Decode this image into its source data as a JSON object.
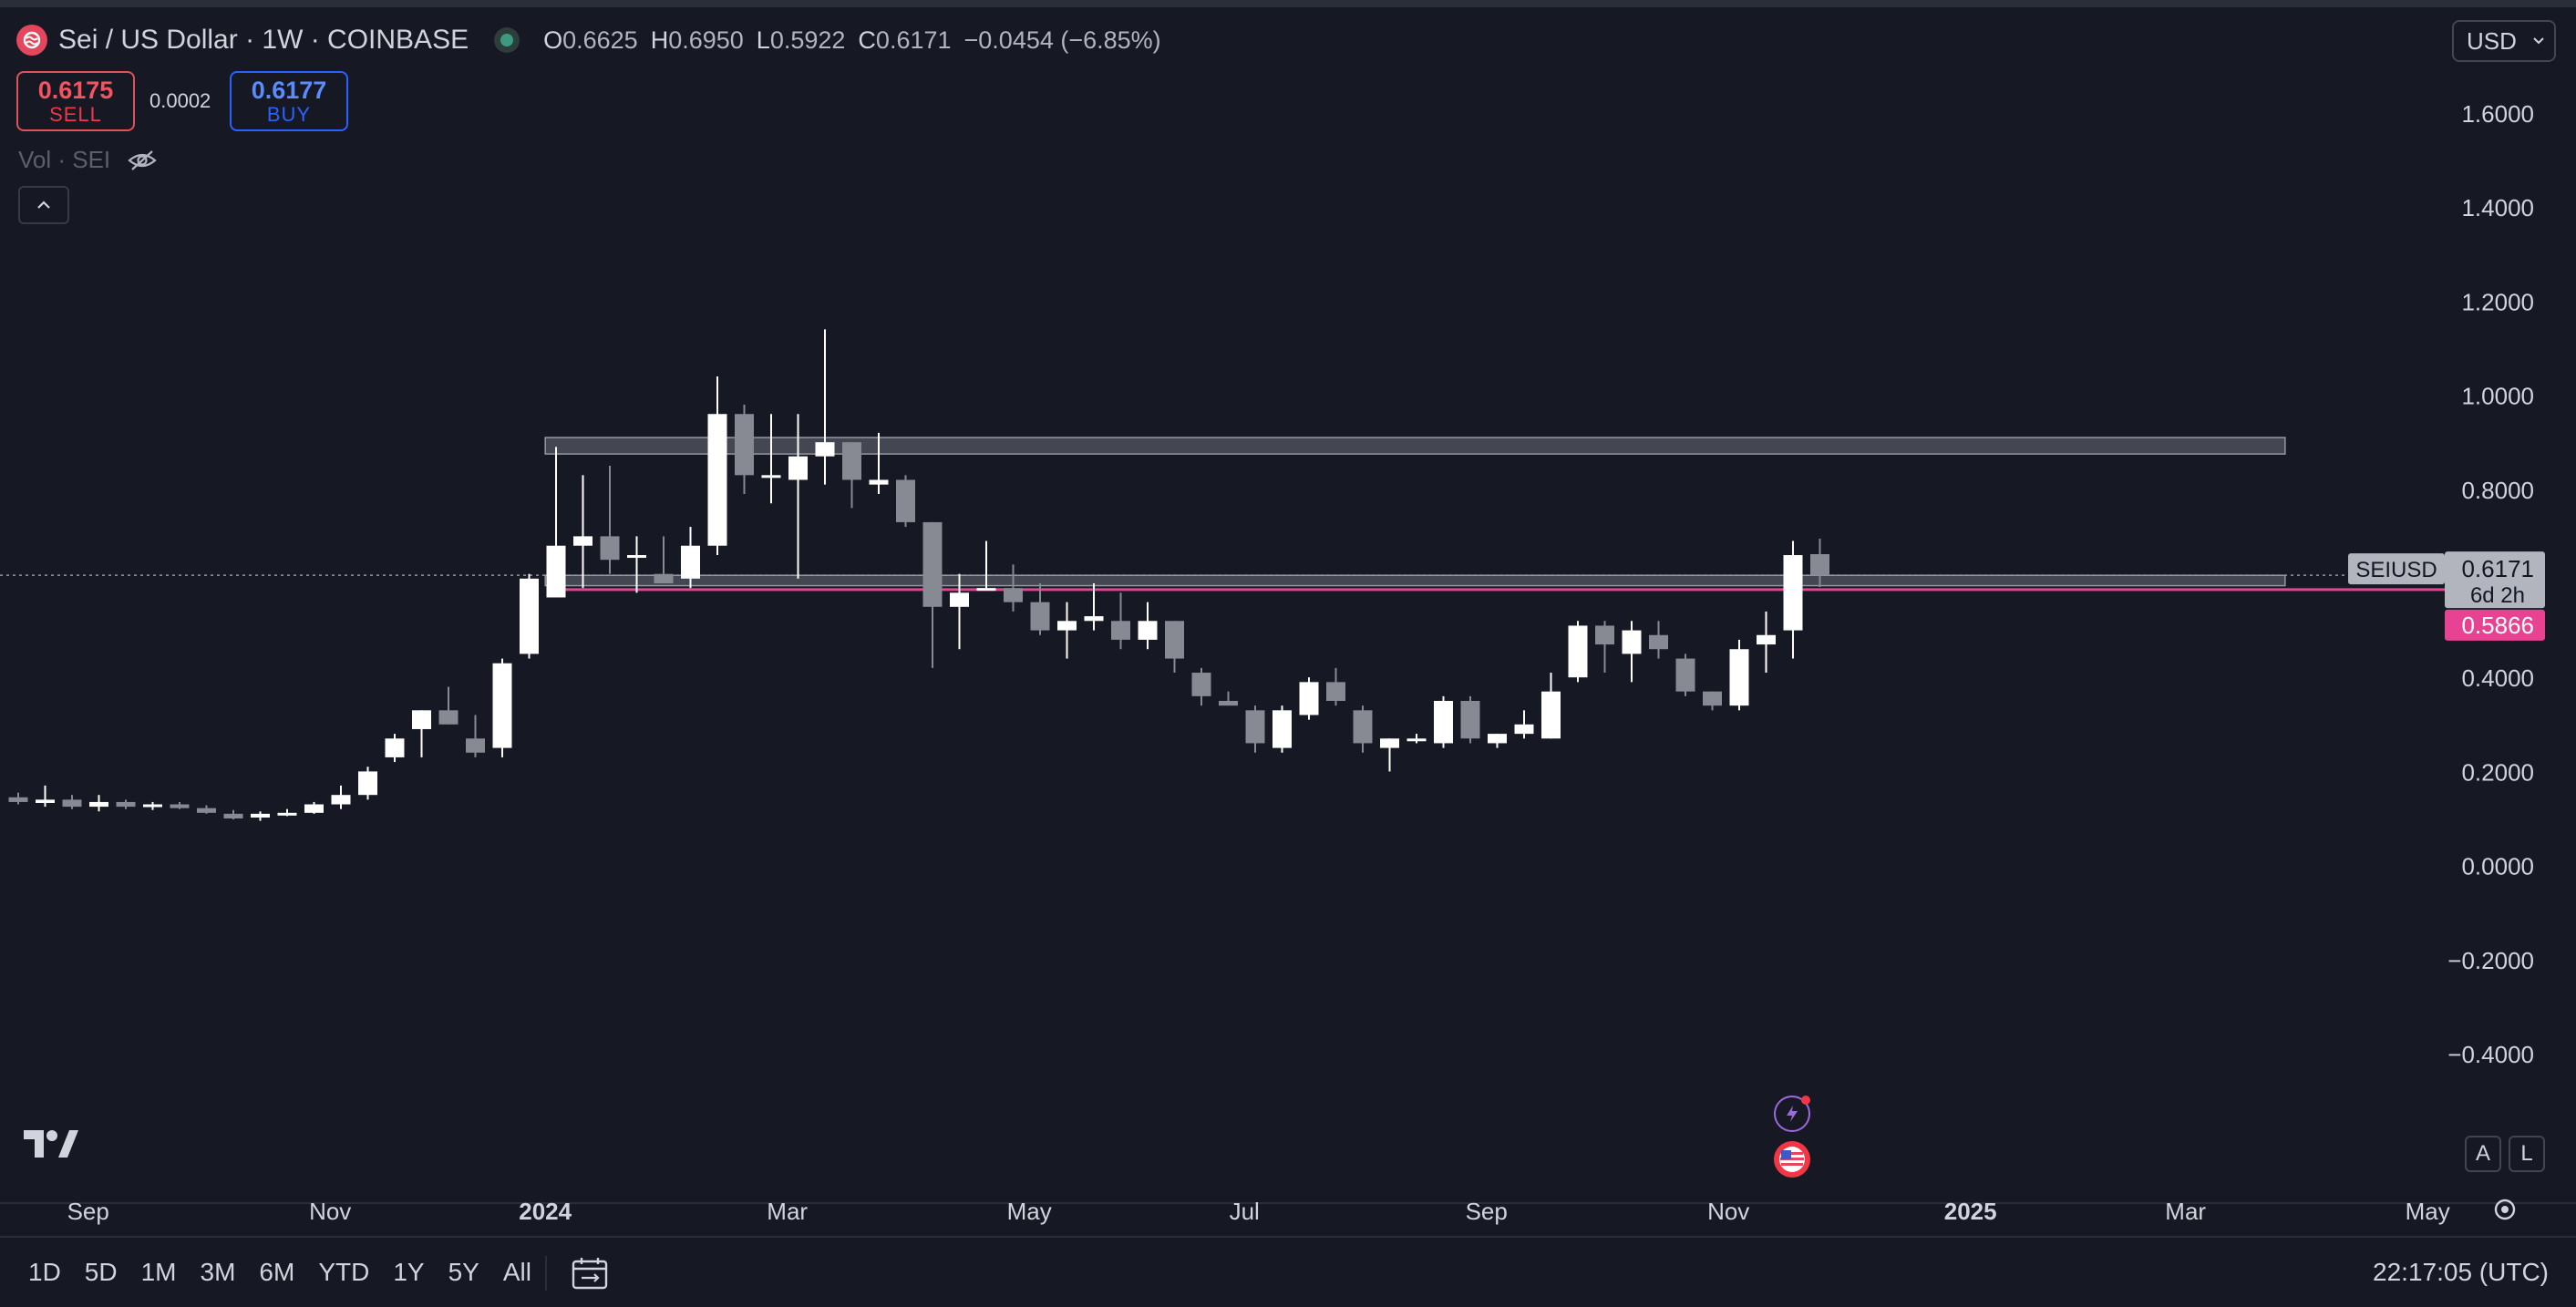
{
  "header": {
    "title": "Sei / US Dollar · 1W · COINBASE",
    "ohlc": [
      {
        "key": "O",
        "value": "0.6625"
      },
      {
        "key": "H",
        "value": "0.6950"
      },
      {
        "key": "L",
        "value": "0.5922"
      },
      {
        "key": "C",
        "value": "0.6171"
      }
    ],
    "change": "−0.0454 (−6.85%)",
    "currency": "USD"
  },
  "trade": {
    "sell_price": "0.6175",
    "sell_label": "SELL",
    "spread": "0.0002",
    "buy_price": "0.6177",
    "buy_label": "BUY"
  },
  "volume": {
    "label": "Vol · SEI"
  },
  "colors": {
    "background": "#161823",
    "up": "#ffffff",
    "down": "#878993",
    "level": "#e84393",
    "zone": "#6b6e78"
  },
  "chart_data": {
    "type": "candlestick",
    "symbol": "SEIUSD",
    "interval": "1W",
    "y_ticks": [
      "1.6000",
      "1.4000",
      "1.2000",
      "1.0000",
      "0.8000",
      "0.6000",
      "0.4000",
      "0.2000",
      "0.0000",
      "−0.2000",
      "−0.4000"
    ],
    "ylim": [
      -0.43,
      1.72
    ],
    "x_ticks": [
      {
        "label": "Sep",
        "x": 2.6
      },
      {
        "label": "Nov",
        "x": 11.6
      },
      {
        "label": "2024",
        "x": 19.6
      },
      {
        "label": "Mar",
        "x": 28.6
      },
      {
        "label": "May",
        "x": 37.6
      },
      {
        "label": "Jul",
        "x": 45.6
      },
      {
        "label": "Sep",
        "x": 54.6
      },
      {
        "label": "Nov",
        "x": 63.6
      },
      {
        "label": "2025",
        "x": 72.6
      },
      {
        "label": "Mar",
        "x": 80.6
      },
      {
        "label": "May",
        "x": 89.6
      }
    ],
    "x_range": [
      0,
      95.6
    ],
    "candles": [
      [
        0.145,
        0.155,
        0.13,
        0.135
      ],
      [
        0.133,
        0.17,
        0.125,
        0.14
      ],
      [
        0.14,
        0.15,
        0.12,
        0.125
      ],
      [
        0.125,
        0.15,
        0.115,
        0.135
      ],
      [
        0.135,
        0.14,
        0.12,
        0.125
      ],
      [
        0.125,
        0.135,
        0.118,
        0.13
      ],
      [
        0.13,
        0.135,
        0.12,
        0.122
      ],
      [
        0.122,
        0.128,
        0.11,
        0.112
      ],
      [
        0.11,
        0.118,
        0.098,
        0.1
      ],
      [
        0.102,
        0.115,
        0.095,
        0.11
      ],
      [
        0.112,
        0.12,
        0.105,
        0.112
      ],
      [
        0.112,
        0.135,
        0.11,
        0.13
      ],
      [
        0.13,
        0.17,
        0.12,
        0.15
      ],
      [
        0.15,
        0.21,
        0.14,
        0.2
      ],
      [
        0.23,
        0.28,
        0.22,
        0.27
      ],
      [
        0.29,
        0.33,
        0.23,
        0.33
      ],
      [
        0.33,
        0.38,
        0.3,
        0.3
      ],
      [
        0.27,
        0.32,
        0.23,
        0.24
      ],
      [
        0.25,
        0.44,
        0.23,
        0.43
      ],
      [
        0.45,
        0.62,
        0.44,
        0.61
      ],
      [
        0.57,
        0.89,
        0.57,
        0.68
      ],
      [
        0.68,
        0.83,
        0.59,
        0.7
      ],
      [
        0.7,
        0.85,
        0.62,
        0.65
      ],
      [
        0.66,
        0.7,
        0.58,
        0.66
      ],
      [
        0.62,
        0.7,
        0.62,
        0.6
      ],
      [
        0.61,
        0.72,
        0.59,
        0.68
      ],
      [
        0.68,
        1.04,
        0.66,
        0.96
      ],
      [
        0.96,
        0.98,
        0.79,
        0.83
      ],
      [
        0.83,
        0.96,
        0.77,
        0.83
      ],
      [
        0.82,
        0.96,
        0.61,
        0.87
      ],
      [
        0.87,
        1.14,
        0.81,
        0.9
      ],
      [
        0.9,
        0.9,
        0.76,
        0.82
      ],
      [
        0.81,
        0.92,
        0.79,
        0.82
      ],
      [
        0.82,
        0.83,
        0.72,
        0.73
      ],
      [
        0.73,
        0.73,
        0.42,
        0.55
      ],
      [
        0.55,
        0.62,
        0.46,
        0.58
      ],
      [
        0.59,
        0.69,
        0.59,
        0.59
      ],
      [
        0.59,
        0.64,
        0.54,
        0.56
      ],
      [
        0.56,
        0.6,
        0.49,
        0.5
      ],
      [
        0.5,
        0.56,
        0.44,
        0.52
      ],
      [
        0.52,
        0.6,
        0.5,
        0.53
      ],
      [
        0.52,
        0.58,
        0.46,
        0.48
      ],
      [
        0.48,
        0.56,
        0.46,
        0.52
      ],
      [
        0.52,
        0.52,
        0.41,
        0.44
      ],
      [
        0.41,
        0.42,
        0.34,
        0.36
      ],
      [
        0.35,
        0.37,
        0.34,
        0.34
      ],
      [
        0.33,
        0.34,
        0.24,
        0.26
      ],
      [
        0.25,
        0.34,
        0.24,
        0.33
      ],
      [
        0.32,
        0.4,
        0.31,
        0.39
      ],
      [
        0.39,
        0.42,
        0.34,
        0.35
      ],
      [
        0.33,
        0.34,
        0.24,
        0.26
      ],
      [
        0.25,
        0.27,
        0.2,
        0.27
      ],
      [
        0.27,
        0.28,
        0.26,
        0.27
      ],
      [
        0.26,
        0.36,
        0.25,
        0.35
      ],
      [
        0.35,
        0.36,
        0.26,
        0.27
      ],
      [
        0.26,
        0.28,
        0.25,
        0.28
      ],
      [
        0.28,
        0.33,
        0.27,
        0.3
      ],
      [
        0.27,
        0.41,
        0.27,
        0.37
      ],
      [
        0.4,
        0.52,
        0.39,
        0.51
      ],
      [
        0.51,
        0.52,
        0.41,
        0.47
      ],
      [
        0.45,
        0.52,
        0.39,
        0.5
      ],
      [
        0.49,
        0.52,
        0.44,
        0.46
      ],
      [
        0.44,
        0.45,
        0.36,
        0.37
      ],
      [
        0.37,
        0.37,
        0.33,
        0.34
      ],
      [
        0.34,
        0.48,
        0.33,
        0.46
      ],
      [
        0.47,
        0.54,
        0.41,
        0.49
      ],
      [
        0.5,
        0.69,
        0.44,
        0.66
      ],
      [
        0.662,
        0.695,
        0.592,
        0.617
      ]
    ],
    "zones": [
      {
        "from_x": 19.6,
        "to_x": 84.3,
        "y_low": 0.875,
        "y_high": 0.91
      },
      {
        "from_x": 19.6,
        "to_x": 84.3,
        "y_low": 0.595,
        "y_high": 0.617
      }
    ],
    "level_line": {
      "value": 0.5866,
      "label": "0.5866",
      "from_x": 20.0
    },
    "last_price": {
      "value": 0.6171,
      "label": "0.6171",
      "symbol": "SEIUSD",
      "countdown": "6d 2h"
    }
  },
  "toolbar": {
    "ranges": [
      "1D",
      "5D",
      "1M",
      "3M",
      "6M",
      "YTD",
      "1Y",
      "5Y",
      "All"
    ],
    "time": "22:17:05 (UTC)",
    "auto_label": "A",
    "log_label": "L"
  }
}
